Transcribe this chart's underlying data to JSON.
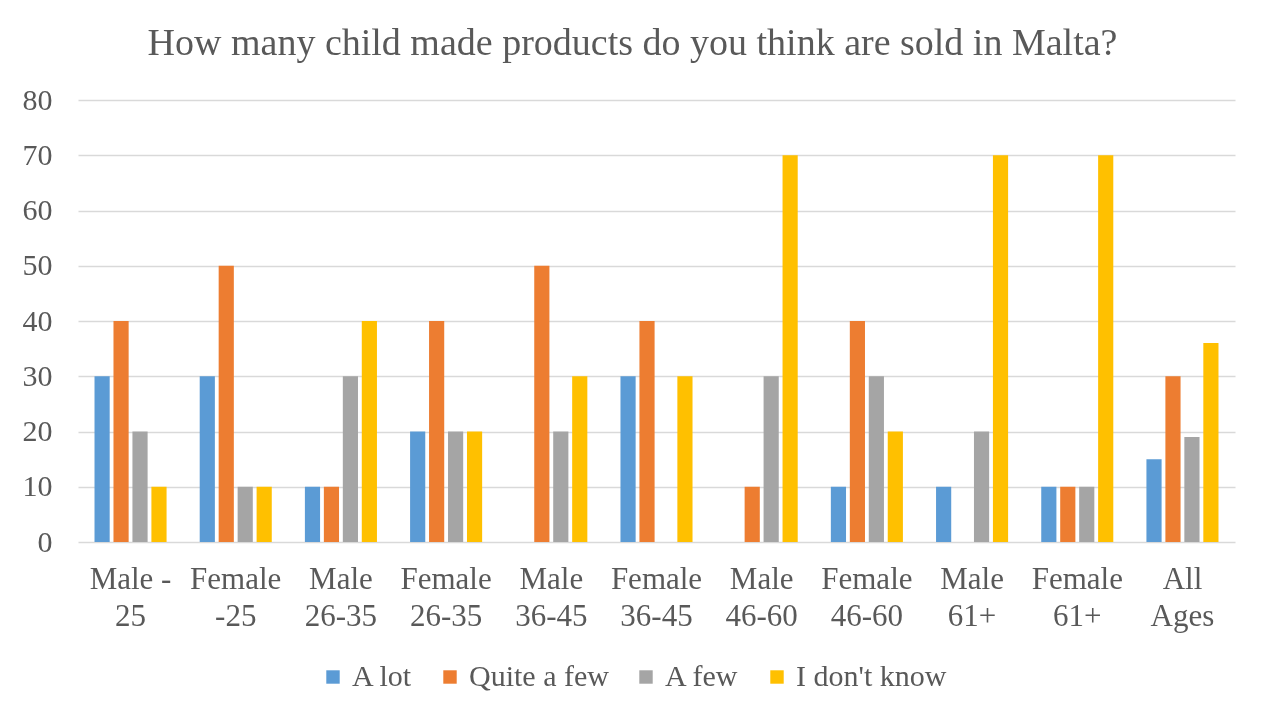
{
  "chart_data": {
    "type": "bar",
    "title": "How many child made products do you think are sold in Malta?",
    "categories": [
      "Male -\n25",
      "Female\n-25",
      "Male\n26-35",
      "Female\n26-35",
      "Male\n36-45",
      "Female\n36-45",
      "Male\n46-60",
      "Female\n46-60",
      "Male\n61+",
      "Female\n61+",
      "All\nAges"
    ],
    "series": [
      {
        "name": "A lot",
        "color": "#5b9bd5",
        "values": [
          30,
          30,
          10,
          20,
          0,
          30,
          0,
          10,
          10,
          10,
          15
        ]
      },
      {
        "name": "Quite a few",
        "color": "#ed7d31",
        "values": [
          40,
          50,
          10,
          40,
          50,
          40,
          10,
          40,
          0,
          10,
          30
        ]
      },
      {
        "name": "A few",
        "color": "#a5a5a5",
        "values": [
          20,
          10,
          30,
          20,
          20,
          0,
          30,
          30,
          20,
          10,
          19
        ]
      },
      {
        "name": "I don't know",
        "color": "#ffc000",
        "values": [
          10,
          10,
          40,
          20,
          30,
          30,
          70,
          20,
          70,
          70,
          36
        ]
      }
    ],
    "ylim": [
      0,
      80
    ],
    "yticks": [
      0,
      10,
      20,
      30,
      40,
      50,
      60,
      70,
      80
    ],
    "grid": "y",
    "legend": "bottom"
  }
}
